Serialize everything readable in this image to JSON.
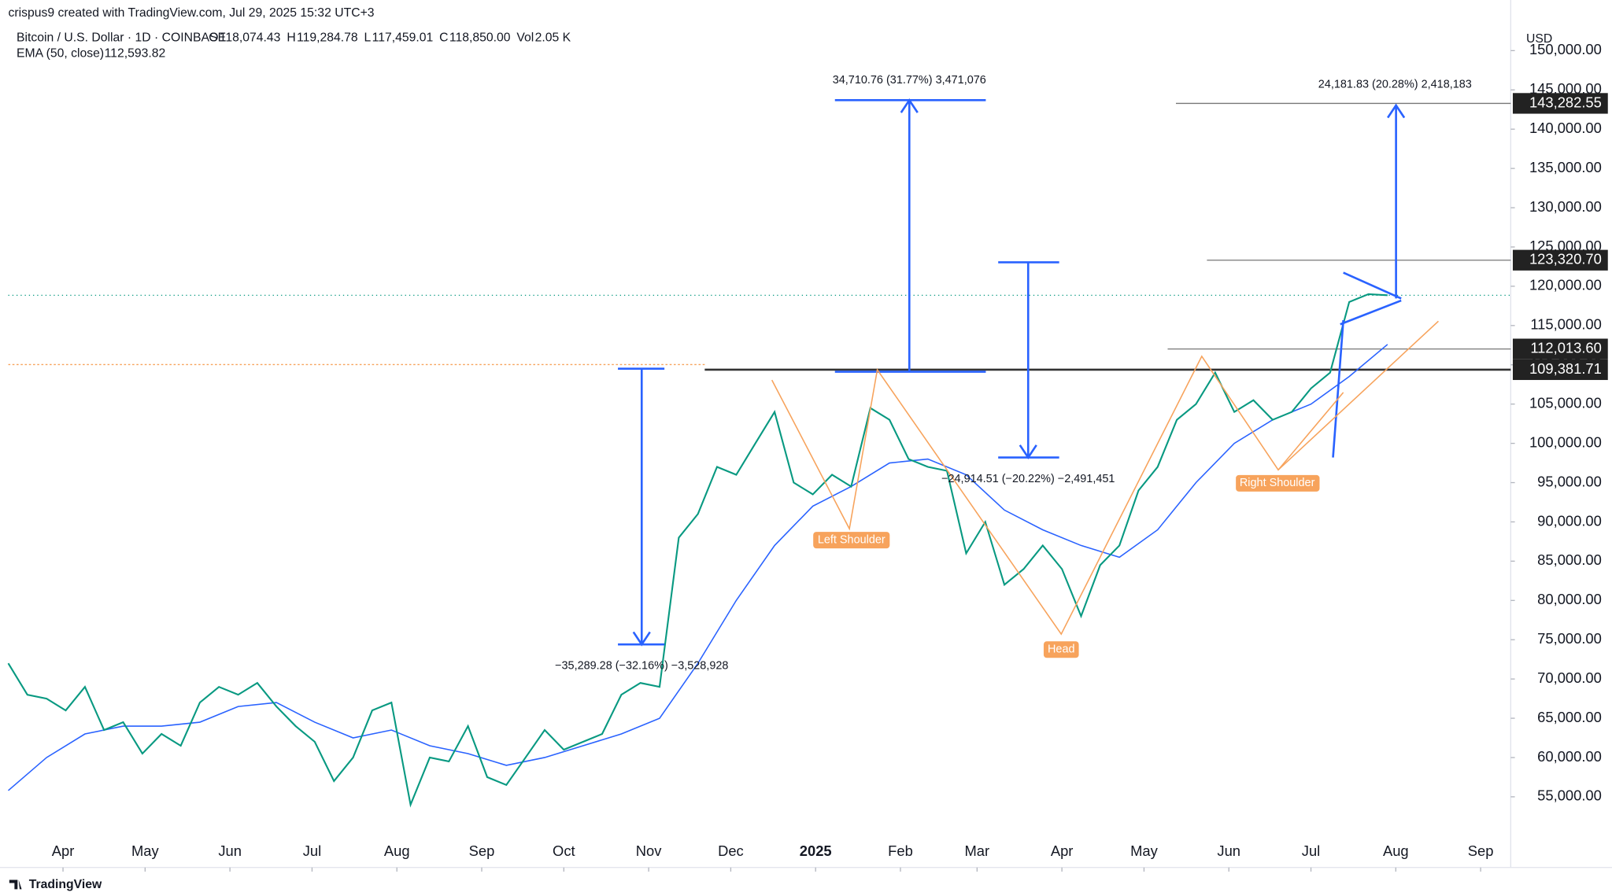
{
  "chart_data": {
    "type": "line",
    "credit": "crispus9 created with TradingView.com, Jul 29, 2025 15:32 UTC+3",
    "symbol": "Bitcoin / U.S. Dollar · 1D · COINBASE",
    "ohlc": [
      {
        "label": "O",
        "value": "118,074.43"
      },
      {
        "label": "H",
        "value": "119,284.78"
      },
      {
        "label": "L",
        "value": "117,459.01"
      },
      {
        "label": "C",
        "value": "118,850.00"
      },
      {
        "label": "Vol",
        "value": "2.05 K"
      }
    ],
    "indicator": "EMA (50, close)",
    "indicator_value": "112,593.82",
    "currency": "USD",
    "footer": "TradingView",
    "x": [
      11,
      18,
      25,
      32,
      39,
      46,
      53,
      60,
      67,
      74,
      81,
      88,
      95,
      102,
      109,
      116,
      123,
      130,
      137,
      144,
      151,
      158,
      165,
      172,
      179,
      186,
      193,
      200,
      207,
      214,
      221,
      228,
      235,
      242,
      249,
      256,
      263,
      270,
      277,
      284,
      291,
      298,
      305,
      312,
      319,
      326,
      333,
      340,
      347,
      354,
      361,
      368,
      375,
      382,
      389,
      396,
      403,
      410,
      417,
      424,
      431,
      438,
      445,
      452,
      459,
      466,
      473,
      480,
      487,
      494,
      501,
      508,
      515
    ],
    "series": [
      {
        "name": "Bitcoin / U.S. Dollar",
        "color": "#089981",
        "values": [
          72000,
          68000,
          67500,
          66000,
          69000,
          63500,
          64500,
          60500,
          63000,
          61500,
          67000,
          69000,
          68000,
          69500,
          66500,
          64000,
          62000,
          57000,
          60000,
          66000,
          67000,
          54000,
          60000,
          59500,
          64000,
          57500,
          56500,
          60000,
          63500,
          61000,
          62000,
          63000,
          68000,
          69500,
          69000,
          88000,
          91000,
          97000,
          96000,
          100000,
          104000,
          95000,
          93500,
          96000,
          94500,
          104500,
          103000,
          98000,
          97000,
          96500,
          86000,
          90000,
          82000,
          84000,
          87000,
          84000,
          78000,
          84500,
          87000,
          94000,
          97000,
          103000,
          105000,
          109000,
          104000,
          105500,
          103000,
          104000,
          107000,
          109000,
          118000,
          119000,
          118850
        ]
      }
    ],
    "ema_x": [
      11,
      25,
      39,
      53,
      67,
      81,
      95,
      109,
      123,
      137,
      151,
      165,
      179,
      193,
      207,
      221,
      235,
      249,
      263,
      277,
      291,
      305,
      319,
      333,
      347,
      361,
      375,
      389,
      403,
      417,
      431,
      445,
      459,
      473,
      487,
      501,
      515
    ],
    "ema": {
      "name": "EMA (50, close)",
      "color": "#2962ff",
      "values": [
        55800,
        60000,
        63000,
        64000,
        64000,
        64500,
        66500,
        67000,
        64500,
        62500,
        63500,
        61500,
        60500,
        59000,
        60000,
        61500,
        63000,
        65000,
        72000,
        80000,
        87000,
        92000,
        94500,
        97500,
        98000,
        96000,
        91500,
        89000,
        87000,
        85500,
        89000,
        95000,
        100000,
        103000,
        105000,
        108500,
        112594
      ]
    },
    "xlim": [
      11,
      560
    ],
    "ylim": [
      46000,
      152500
    ],
    "xticks": [
      {
        "value": 31,
        "label": "Apr"
      },
      {
        "value": 61,
        "label": "May"
      },
      {
        "value": 92,
        "label": "Jun"
      },
      {
        "value": 122,
        "label": "Jul"
      },
      {
        "value": 153,
        "label": "Aug"
      },
      {
        "value": 184,
        "label": "Sep"
      },
      {
        "value": 214,
        "label": "Oct"
      },
      {
        "value": 245,
        "label": "Nov"
      },
      {
        "value": 275,
        "label": "Dec"
      },
      {
        "value": 306,
        "label": "2025"
      },
      {
        "value": 337,
        "label": "Feb"
      },
      {
        "value": 365,
        "label": "Mar"
      },
      {
        "value": 396,
        "label": "Apr"
      },
      {
        "value": 426,
        "label": "May"
      },
      {
        "value": 457,
        "label": "Jun"
      },
      {
        "value": 487,
        "label": "Jul"
      },
      {
        "value": 518,
        "label": "Aug"
      },
      {
        "value": 549,
        "label": "Sep"
      }
    ],
    "yticks": [
      {
        "value": 55000,
        "label": "55,000.00"
      },
      {
        "value": 60000,
        "label": "60,000.00"
      },
      {
        "value": 65000,
        "label": "65,000.00"
      },
      {
        "value": 70000,
        "label": "70,000.00"
      },
      {
        "value": 75000,
        "label": "75,000.00"
      },
      {
        "value": 80000,
        "label": "80,000.00"
      },
      {
        "value": 85000,
        "label": "85,000.00"
      },
      {
        "value": 90000,
        "label": "90,000.00"
      },
      {
        "value": 95000,
        "label": "95,000.00"
      },
      {
        "value": 100000,
        "label": "100,000.00"
      },
      {
        "value": 105000,
        "label": "105,000.00"
      },
      {
        "value": 110000,
        "label": "110,000.00"
      },
      {
        "value": 115000,
        "label": "115,000.00"
      },
      {
        "value": 120000,
        "label": "120,000.00"
      },
      {
        "value": 125000,
        "label": "125,000.00"
      },
      {
        "value": 130000,
        "label": "130,000.00"
      },
      {
        "value": 135000,
        "label": "135,000.00"
      },
      {
        "value": 140000,
        "label": "140,000.00"
      },
      {
        "value": 145000,
        "label": "145,000.00"
      },
      {
        "value": 150000,
        "label": "150,000.00"
      }
    ],
    "levels": [
      {
        "value": 143282.55,
        "label": "143,282.55"
      },
      {
        "value": 123320.7,
        "label": "123,320.70"
      },
      {
        "value": 112013.6,
        "label": "112,013.60"
      },
      {
        "value": 109381.71,
        "label": "109,381.71"
      }
    ],
    "annotations": [
      "34,710.76 (31.77%) 3,471,076",
      "24,181.83 (20.28%) 2,418,183",
      "−24,914.51 (−20.22%) −2,491,451",
      "−35,289.28 (−32.16%) −3,528,928"
    ],
    "pattern_labels": [
      "Left Shoulder",
      "Head",
      "Right Shoulder"
    ]
  }
}
